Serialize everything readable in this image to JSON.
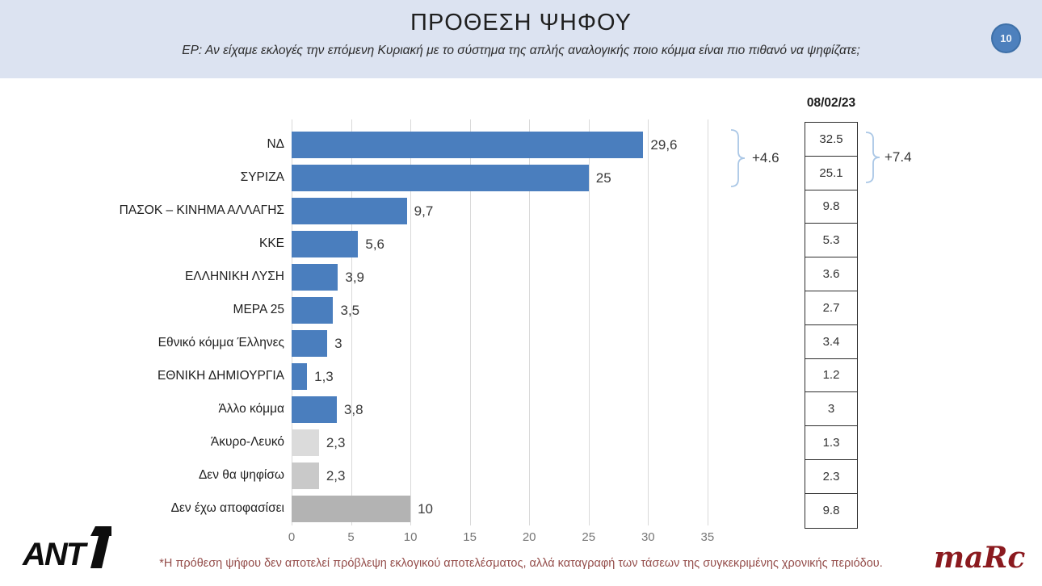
{
  "header": {
    "title": "ΠΡΟΘΕΣΗ ΨΗΦΟΥ",
    "subtitle": "ΕΡ: Αν είχαμε εκλογές την επόμενη Κυριακή με το σύστημα της απλής αναλογικής ποιο κόμμα είναι πιο πιθανό να ψηφίζατε;",
    "page_number": "10"
  },
  "chart_data": {
    "type": "bar",
    "orientation": "horizontal",
    "title": "ΠΡΟΘΕΣΗ ΨΗΦΟΥ",
    "categories": [
      "ΝΔ",
      "ΣΥΡΙΖΑ",
      "ΠΑΣΟΚ – ΚΙΝΗΜΑ ΑΛΛΑΓΗΣ",
      "ΚΚΕ",
      "ΕΛΛΗΝΙΚΗ ΛΥΣΗ",
      "ΜΕΡΑ 25",
      "Εθνικό κόμμα Έλληνες",
      "ΕΘΝΙΚΗ ΔΗΜΙΟΥΡΓΙΑ",
      "Άλλο κόμμα",
      "Άκυρο-Λευκό",
      "Δεν θα ψηφίσω",
      "Δεν έχω αποφασίσει"
    ],
    "values": [
      29.6,
      25,
      9.7,
      5.6,
      3.9,
      3.5,
      3,
      1.3,
      3.8,
      2.3,
      2.3,
      10
    ],
    "value_labels": [
      "29,6",
      "25",
      "9,7",
      "5,6",
      "3,9",
      "3,5",
      "3",
      "1,3",
      "3,8",
      "2,3",
      "2,3",
      "10"
    ],
    "bar_colors": [
      "#4a7ebe",
      "#4a7ebe",
      "#4a7ebe",
      "#4a7ebe",
      "#4a7ebe",
      "#4a7ebe",
      "#4a7ebe",
      "#4a7ebe",
      "#4a7ebe",
      "#dbdbdb",
      "#c9c9c9",
      "#b3b3b3"
    ],
    "xlim": [
      0,
      35
    ],
    "x_ticks": [
      0,
      5,
      10,
      15,
      20,
      25,
      30,
      35
    ],
    "grid": "vertical",
    "annotation": {
      "label": "+4.6",
      "spans_rows": [
        0,
        1
      ]
    }
  },
  "comparison_column": {
    "header": "08/02/23",
    "values": [
      "32.5",
      "25.1",
      "9.8",
      "5.3",
      "3.6",
      "2.7",
      "3.4",
      "1.2",
      "3",
      "1.3",
      "2.3",
      "9.8"
    ],
    "annotation": {
      "label": "+7.4",
      "spans_rows": [
        0,
        1
      ]
    }
  },
  "footer": {
    "note": "*Η πρόθεση ψήφου δεν αποτελεί πρόβλεψη εκλογικού αποτελέσματος, αλλά καταγραφή των τάσεων της συγκεκριμένης χρονικής περιόδου.",
    "left_logo_text": "ANT1",
    "right_logo_text": "maRc"
  },
  "colors": {
    "header_band": "#dce3f1",
    "bar_blue": "#4a7ebe",
    "bar_gray_light": "#dbdbdb",
    "bar_gray_mid": "#c9c9c9",
    "bar_gray_dark": "#b3b3b3",
    "gridline": "#d9d9d9",
    "brace": "#aac7e6",
    "footnote_red": "#944d4a",
    "marc_red": "#8b1a1f",
    "badge_blue": "#4d80bd"
  }
}
